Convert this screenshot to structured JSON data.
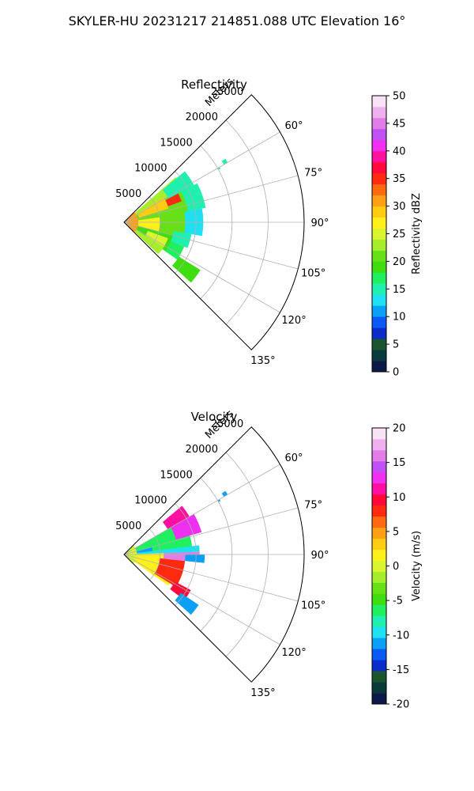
{
  "figure": {
    "title": "SKYLER-HU  20231217  214851.088 UTC Elevation 16°"
  },
  "chart_data": [
    {
      "type": "polar-sector",
      "title": "Reflectivity",
      "radial_axis_label": "Meters",
      "radial_ticks": [
        5000,
        10000,
        15000,
        20000,
        25000
      ],
      "radial_range": [
        0,
        25000
      ],
      "azimuth_range_deg": [
        45,
        135
      ],
      "azimuth_ticks_deg": [
        60,
        75,
        90,
        105,
        120,
        135
      ],
      "azimuth_tick_labels": [
        "60°",
        "75°",
        "90°",
        "105°",
        "120°",
        "135°"
      ],
      "grid": true,
      "colorbar": {
        "label": "Reflectivity dBZ",
        "range": [
          0,
          50
        ],
        "ticks": [
          0,
          5,
          10,
          15,
          20,
          25,
          30,
          35,
          40,
          45,
          50
        ],
        "colors": [
          "#0c1a4a",
          "#0a3a3a",
          "#1b5530",
          "#0b2cc8",
          "#0a5bf5",
          "#0aa0f5",
          "#1fe0f0",
          "#1ff0b0",
          "#20f060",
          "#3fdc10",
          "#68e018",
          "#a6ee2a",
          "#d8f530",
          "#fff01a",
          "#ffcc14",
          "#ffa014",
          "#ff6a10",
          "#ff2a10",
          "#ff0a3a",
          "#ff10a0",
          "#ef30f0",
          "#c050f5",
          "#e07ee8",
          "#f0b0ee",
          "#f8e2f6"
        ]
      },
      "echo_sectors": [
        {
          "az": [
            49,
            60
          ],
          "r": [
            0,
            9500
          ],
          "value": 22
        },
        {
          "az": [
            60,
            90
          ],
          "r": [
            0,
            10500
          ],
          "value": 21
        },
        {
          "az": [
            90,
            105
          ],
          "r": [
            0,
            9000
          ],
          "value": 20
        },
        {
          "az": [
            105,
            125
          ],
          "r": [
            0,
            8200
          ],
          "value": 19
        },
        {
          "az": [
            122,
            133
          ],
          "r": [
            0,
            6500
          ],
          "value": 22
        },
        {
          "az": [
            50,
            62
          ],
          "r": [
            7000,
            11000
          ],
          "value": 15
        },
        {
          "az": [
            62,
            80
          ],
          "r": [
            9000,
            11500
          ],
          "value": 14
        },
        {
          "az": [
            80,
            100
          ],
          "r": [
            8500,
            11000
          ],
          "value": 13
        },
        {
          "az": [
            100,
            112
          ],
          "r": [
            7000,
            9500
          ],
          "value": 14
        },
        {
          "az": [
            112,
            125
          ],
          "r": [
            7000,
            9000
          ],
          "value": 16
        },
        {
          "az": [
            122,
            132
          ],
          "r": [
            9000,
            12500
          ],
          "value": 18
        },
        {
          "az": [
            58,
            73
          ],
          "r": [
            2200,
            6500
          ],
          "value": 28
        },
        {
          "az": [
            62,
            70
          ],
          "r": [
            6500,
            8500
          ],
          "value": 34
        },
        {
          "az": [
            82,
            105
          ],
          "r": [
            1500,
            5000
          ],
          "value": 26
        },
        {
          "az": [
            110,
            122
          ],
          "r": [
            3500,
            6500
          ],
          "value": 25
        },
        {
          "az": [
            45,
            135
          ],
          "r": [
            0,
            2000
          ],
          "value": 30
        }
      ],
      "outlier_gates": [
        {
          "az": [
            58,
            60
          ],
          "r": [
            16000,
            16600
          ],
          "value": 14
        },
        {
          "az": [
            60,
            61
          ],
          "r": [
            15000,
            15300
          ],
          "value": 15
        }
      ]
    },
    {
      "type": "polar-sector",
      "title": "Velocity",
      "radial_axis_label": "Meters",
      "radial_ticks": [
        5000,
        10000,
        15000,
        20000,
        25000
      ],
      "radial_range": [
        0,
        25000
      ],
      "azimuth_range_deg": [
        45,
        135
      ],
      "azimuth_ticks_deg": [
        60,
        75,
        90,
        105,
        120,
        135
      ],
      "azimuth_tick_labels": [
        "60°",
        "75°",
        "90°",
        "105°",
        "120°",
        "135°"
      ],
      "grid": true,
      "colorbar": {
        "label": "Velocity (m/s)",
        "range": [
          -20,
          20
        ],
        "ticks": [
          -20,
          -15,
          -10,
          -5,
          0,
          5,
          10,
          15,
          20
        ],
        "colors": [
          "#0c1a4a",
          "#0a3a3a",
          "#1b5530",
          "#0b2cc8",
          "#0a5bf5",
          "#0aa0f5",
          "#1fe0f0",
          "#1ff0b0",
          "#20f060",
          "#3fdc10",
          "#68e018",
          "#a6ee2a",
          "#d8f530",
          "#fff01a",
          "#ffcc14",
          "#ffa014",
          "#ff6a10",
          "#ff2a10",
          "#ff0a3a",
          "#ff10a0",
          "#ef30f0",
          "#c050f5",
          "#e07ee8",
          "#f0b0ee",
          "#f8e2f6"
        ]
      },
      "echo_sectors": [
        {
          "az": [
            60,
            90
          ],
          "r": [
            0,
            9500
          ],
          "value": -6
        },
        {
          "az": [
            75,
            85
          ],
          "r": [
            0,
            4000
          ],
          "value": -11
        },
        {
          "az": [
            83,
            88
          ],
          "r": [
            0,
            10500
          ],
          "value": -10
        },
        {
          "az": [
            88,
            125
          ],
          "r": [
            0,
            7500
          ],
          "value": 1
        },
        {
          "az": [
            96,
            122
          ],
          "r": [
            5000,
            8500
          ],
          "value": 8
        },
        {
          "az": [
            88,
            96
          ],
          "r": [
            5500,
            10500
          ],
          "value": 16
        },
        {
          "az": [
            60,
            74
          ],
          "r": [
            7500,
            11200
          ],
          "value": 13
        },
        {
          "az": [
            50,
            60
          ],
          "r": [
            7000,
            10500
          ],
          "value": 11
        },
        {
          "az": [
            118,
            127
          ],
          "r": [
            8000,
            10500
          ],
          "value": 10
        },
        {
          "az": [
            124,
            132
          ],
          "r": [
            9500,
            12500
          ],
          "value": -11
        },
        {
          "az": [
            90,
            96
          ],
          "r": [
            8500,
            11200
          ],
          "value": -11
        },
        {
          "az": [
            45,
            135
          ],
          "r": [
            0,
            1800
          ],
          "value": 0
        }
      ],
      "outlier_gates": [
        {
          "az": [
            58,
            60
          ],
          "r": [
            16000,
            16600
          ],
          "value": -11
        },
        {
          "az": [
            60,
            61
          ],
          "r": [
            15000,
            15300
          ],
          "value": -12
        }
      ]
    }
  ]
}
